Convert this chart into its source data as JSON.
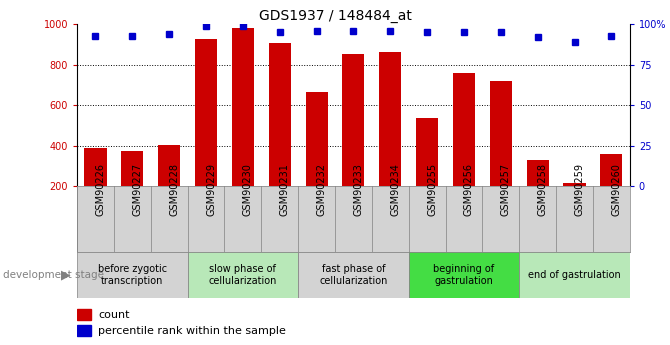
{
  "title": "GDS1937 / 148484_at",
  "samples": [
    "GSM90226",
    "GSM90227",
    "GSM90228",
    "GSM90229",
    "GSM90230",
    "GSM90231",
    "GSM90232",
    "GSM90233",
    "GSM90234",
    "GSM90255",
    "GSM90256",
    "GSM90257",
    "GSM90258",
    "GSM90259",
    "GSM90260"
  ],
  "counts": [
    390,
    375,
    405,
    925,
    980,
    905,
    665,
    855,
    865,
    535,
    760,
    720,
    330,
    215,
    360
  ],
  "percentiles": [
    93,
    93,
    94,
    99,
    99,
    95,
    96,
    96,
    96,
    95,
    95,
    95,
    92,
    89,
    93
  ],
  "bar_color": "#cc0000",
  "dot_color": "#0000cc",
  "ylim_left": [
    200,
    1000
  ],
  "ylim_right": [
    0,
    100
  ],
  "yticks_left": [
    200,
    400,
    600,
    800,
    1000
  ],
  "yticks_right": [
    0,
    25,
    50,
    75,
    100
  ],
  "ytick_labels_right": [
    "0",
    "25",
    "50",
    "75",
    "100%"
  ],
  "grid_values": [
    400,
    600,
    800
  ],
  "stages": [
    {
      "label": "before zygotic\ntranscription",
      "start": 0,
      "end": 3,
      "color": "#d3d3d3"
    },
    {
      "label": "slow phase of\ncellularization",
      "start": 3,
      "end": 6,
      "color": "#b8e8b8"
    },
    {
      "label": "fast phase of\ncellularization",
      "start": 6,
      "end": 9,
      "color": "#d3d3d3"
    },
    {
      "label": "beginning of\ngastrulation",
      "start": 9,
      "end": 12,
      "color": "#44dd44"
    },
    {
      "label": "end of gastrulation",
      "start": 12,
      "end": 15,
      "color": "#b8e8b8"
    }
  ],
  "dev_stage_label": "development stage",
  "legend_count_label": "count",
  "legend_percentile_label": "percentile rank within the sample",
  "title_fontsize": 10,
  "tick_fontsize": 7,
  "stage_fontsize": 7,
  "legend_fontsize": 8,
  "xtick_bg_color": "#d3d3d3"
}
